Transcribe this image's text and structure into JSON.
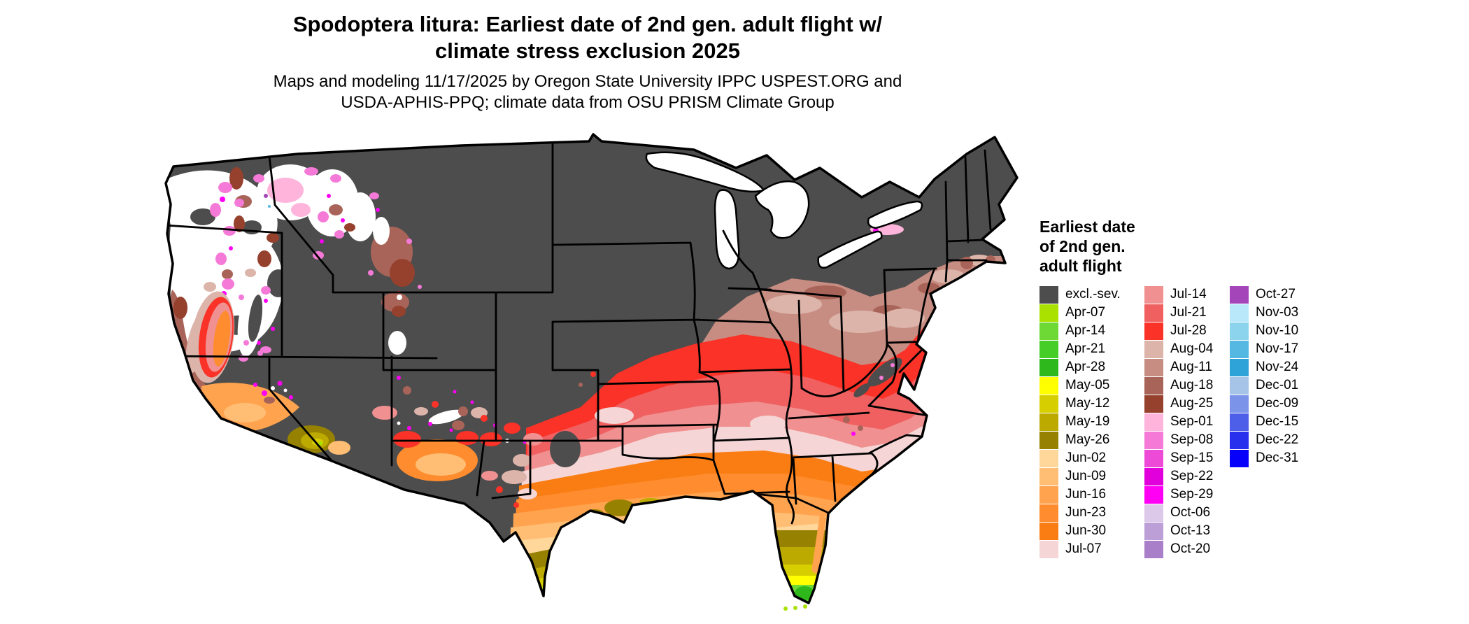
{
  "title": {
    "line1": "Spodoptera litura: Earliest date of 2nd gen. adult flight w/",
    "line2": "climate stress exclusion 2025"
  },
  "subtitle": {
    "line1": "Maps and modeling 11/17/2025 by Oregon State University IPPC USPEST.ORG and",
    "line2": "USDA-APHIS-PPQ; climate data from OSU PRISM Climate Group"
  },
  "legend": {
    "title_lines": [
      "Earliest date",
      "of 2nd gen.",
      "adult flight"
    ],
    "columns": [
      [
        {
          "label": "excl.-sev.",
          "color": "#4d4d4d"
        },
        {
          "label": "Apr-07",
          "color": "#aae100"
        },
        {
          "label": "Apr-14",
          "color": "#6ed934"
        },
        {
          "label": "Apr-21",
          "color": "#46cd28"
        },
        {
          "label": "Apr-28",
          "color": "#2eb81c"
        },
        {
          "label": "May-05",
          "color": "#ffff00"
        },
        {
          "label": "May-12",
          "color": "#d7ce00"
        },
        {
          "label": "May-19",
          "color": "#bcaa00"
        },
        {
          "label": "May-26",
          "color": "#968200"
        },
        {
          "label": "Jun-02",
          "color": "#ffd79b"
        },
        {
          "label": "Jun-09",
          "color": "#ffbe73"
        },
        {
          "label": "Jun-16",
          "color": "#ffa34f"
        },
        {
          "label": "Jun-23",
          "color": "#ff8c2e"
        },
        {
          "label": "Jun-30",
          "color": "#fa7d14"
        },
        {
          "label": "Jul-07",
          "color": "#f5d5d5"
        }
      ],
      [
        {
          "label": "Jul-14",
          "color": "#f09090"
        },
        {
          "label": "Jul-21",
          "color": "#f06060"
        },
        {
          "label": "Jul-28",
          "color": "#fa3228"
        },
        {
          "label": "Aug-04",
          "color": "#dcb4aa"
        },
        {
          "label": "Aug-11",
          "color": "#c78d82"
        },
        {
          "label": "Aug-18",
          "color": "#a96459"
        },
        {
          "label": "Aug-25",
          "color": "#96412d"
        },
        {
          "label": "Sep-01",
          "color": "#ffb4dc"
        },
        {
          "label": "Sep-08",
          "color": "#f57ad7"
        },
        {
          "label": "Sep-15",
          "color": "#ee4ad8"
        },
        {
          "label": "Sep-22",
          "color": "#e100dc"
        },
        {
          "label": "Sep-29",
          "color": "#ff00f5"
        },
        {
          "label": "Oct-06",
          "color": "#dcc8e8"
        },
        {
          "label": "Oct-13",
          "color": "#bc9fd6"
        },
        {
          "label": "Oct-20",
          "color": "#a87fc8"
        }
      ],
      [
        {
          "label": "Oct-27",
          "color": "#a446ba"
        },
        {
          "label": "Nov-03",
          "color": "#b9e8fa"
        },
        {
          "label": "Nov-10",
          "color": "#8cd3ee"
        },
        {
          "label": "Nov-17",
          "color": "#55b8e3"
        },
        {
          "label": "Nov-24",
          "color": "#2da3d7"
        },
        {
          "label": "Dec-01",
          "color": "#a5c4e8"
        },
        {
          "label": "Dec-09",
          "color": "#7b93e8"
        },
        {
          "label": "Dec-15",
          "color": "#4d5fe8"
        },
        {
          "label": "Dec-22",
          "color": "#2830ee"
        },
        {
          "label": "Dec-31",
          "color": "#0600fa"
        }
      ]
    ]
  },
  "map": {
    "region": "Continental United States",
    "border_color": "#000000",
    "nodata_color": "#ffffff",
    "excluded_label": "excl.-sev."
  }
}
